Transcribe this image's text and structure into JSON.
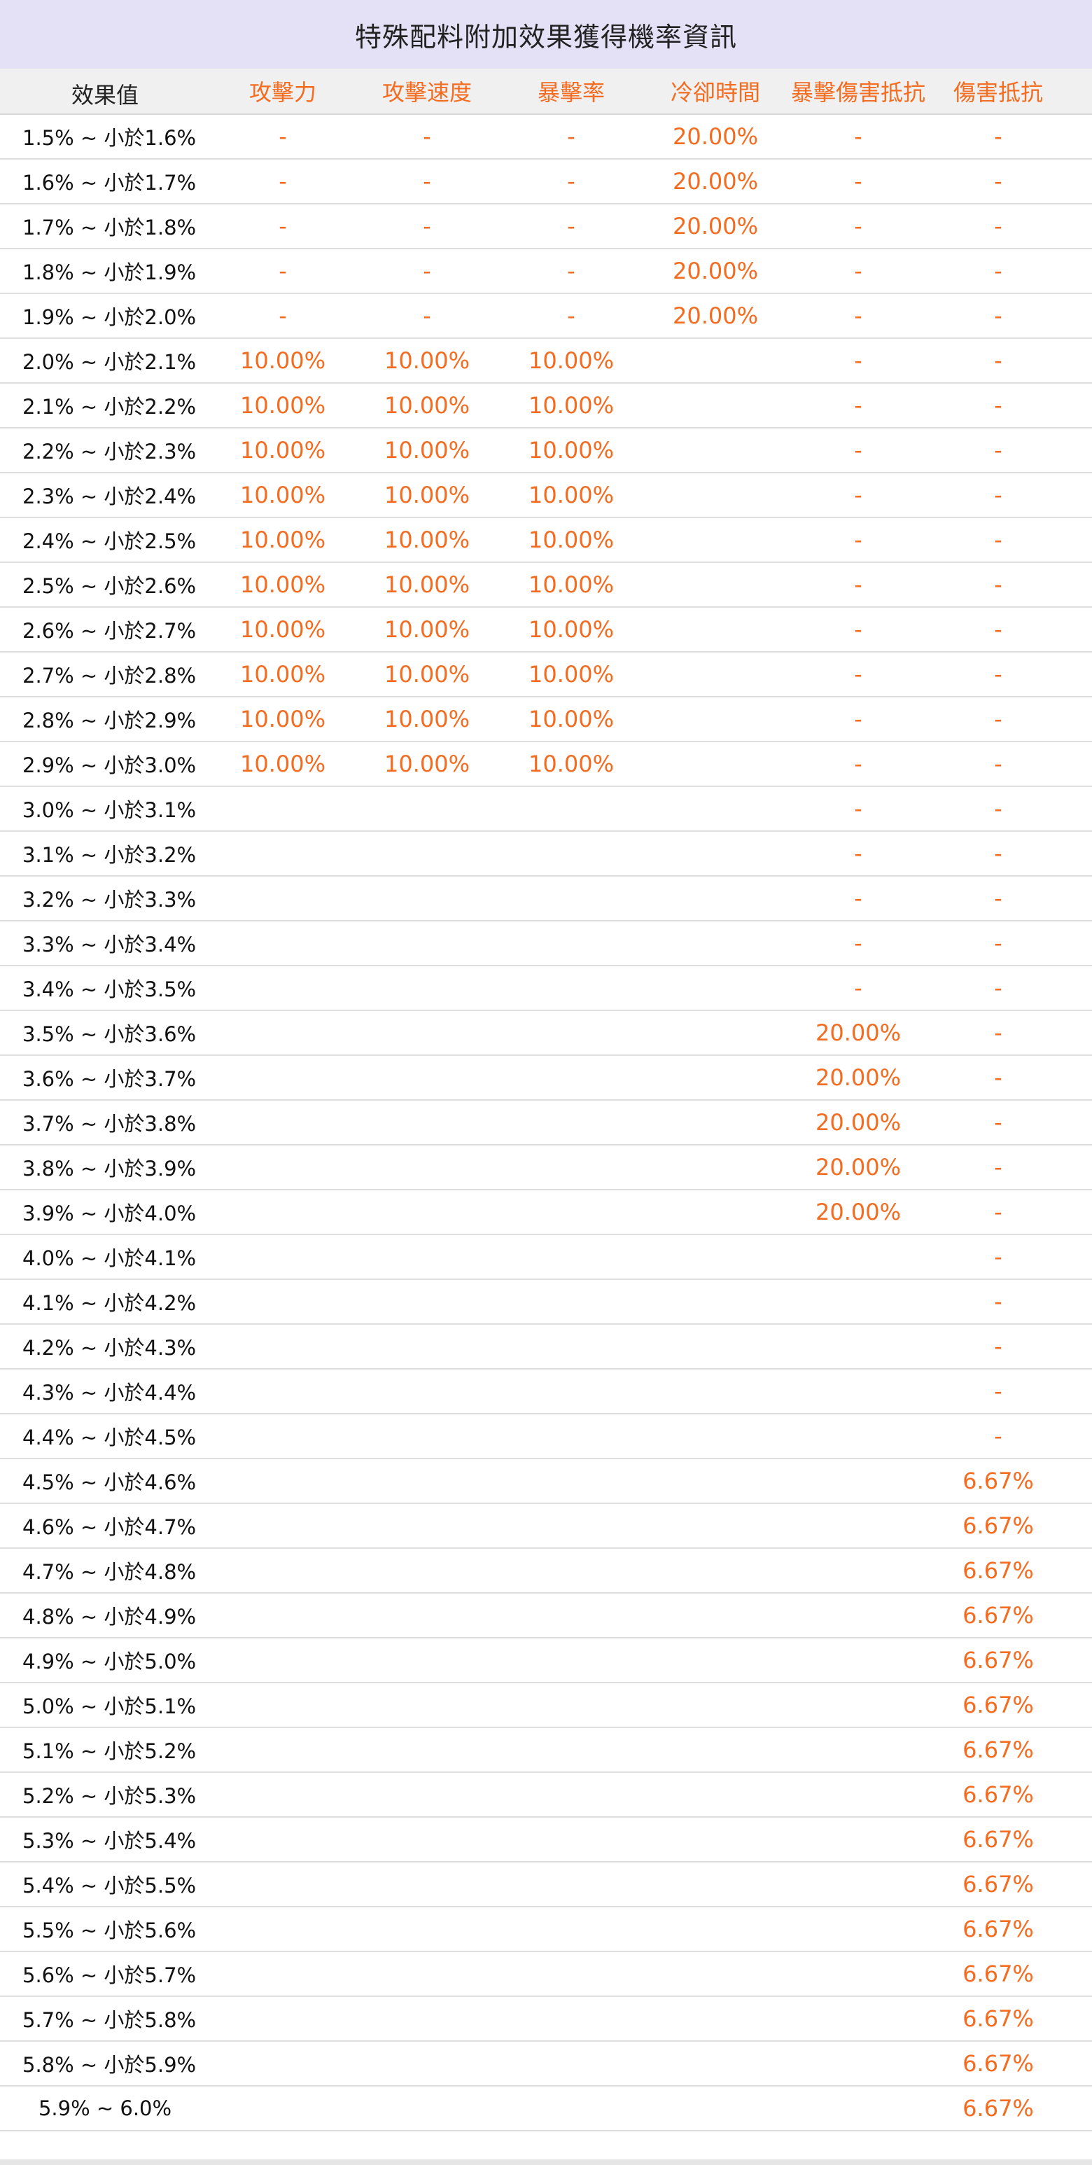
{
  "title": "特殊配料附加效果獲得機率資訊",
  "columns": [
    "效果值",
    "攻擊力",
    "攻擊速度",
    "暴擊率",
    "冷卻時間",
    "暴擊傷害抵抗",
    "傷害抵抗"
  ],
  "accent_color": "#f36c20",
  "header_bg": "#e4e0f6",
  "rows": [
    {
      "label": "1.5% ~ 小於1.6%",
      "values": [
        "-",
        "-",
        "-",
        "20.00%",
        "-",
        "-"
      ]
    },
    {
      "label": "1.6% ~ 小於1.7%",
      "values": [
        "-",
        "-",
        "-",
        "20.00%",
        "-",
        "-"
      ]
    },
    {
      "label": "1.7% ~ 小於1.8%",
      "values": [
        "-",
        "-",
        "-",
        "20.00%",
        "-",
        "-"
      ]
    },
    {
      "label": "1.8% ~ 小於1.9%",
      "values": [
        "-",
        "-",
        "-",
        "20.00%",
        "-",
        "-"
      ]
    },
    {
      "label": "1.9% ~ 小於2.0%",
      "values": [
        "-",
        "-",
        "-",
        "20.00%",
        "-",
        "-"
      ]
    },
    {
      "label": "2.0% ~ 小於2.1%",
      "values": [
        "10.00%",
        "10.00%",
        "10.00%",
        "",
        "-",
        "-"
      ]
    },
    {
      "label": "2.1% ~ 小於2.2%",
      "values": [
        "10.00%",
        "10.00%",
        "10.00%",
        "",
        "-",
        "-"
      ]
    },
    {
      "label": "2.2% ~ 小於2.3%",
      "values": [
        "10.00%",
        "10.00%",
        "10.00%",
        "",
        "-",
        "-"
      ]
    },
    {
      "label": "2.3% ~ 小於2.4%",
      "values": [
        "10.00%",
        "10.00%",
        "10.00%",
        "",
        "-",
        "-"
      ]
    },
    {
      "label": "2.4% ~ 小於2.5%",
      "values": [
        "10.00%",
        "10.00%",
        "10.00%",
        "",
        "-",
        "-"
      ]
    },
    {
      "label": "2.5% ~ 小於2.6%",
      "values": [
        "10.00%",
        "10.00%",
        "10.00%",
        "",
        "-",
        "-"
      ]
    },
    {
      "label": "2.6% ~ 小於2.7%",
      "values": [
        "10.00%",
        "10.00%",
        "10.00%",
        "",
        "-",
        "-"
      ]
    },
    {
      "label": "2.7% ~ 小於2.8%",
      "values": [
        "10.00%",
        "10.00%",
        "10.00%",
        "",
        "-",
        "-"
      ]
    },
    {
      "label": "2.8% ~ 小於2.9%",
      "values": [
        "10.00%",
        "10.00%",
        "10.00%",
        "",
        "-",
        "-"
      ]
    },
    {
      "label": "2.9% ~ 小於3.0%",
      "values": [
        "10.00%",
        "10.00%",
        "10.00%",
        "",
        "-",
        "-"
      ]
    },
    {
      "label": "3.0% ~ 小於3.1%",
      "values": [
        "",
        "",
        "",
        "",
        "-",
        "-"
      ]
    },
    {
      "label": "3.1% ~ 小於3.2%",
      "values": [
        "",
        "",
        "",
        "",
        "-",
        "-"
      ]
    },
    {
      "label": "3.2% ~ 小於3.3%",
      "values": [
        "",
        "",
        "",
        "",
        "-",
        "-"
      ]
    },
    {
      "label": "3.3% ~ 小於3.4%",
      "values": [
        "",
        "",
        "",
        "",
        "-",
        "-"
      ]
    },
    {
      "label": "3.4% ~ 小於3.5%",
      "values": [
        "",
        "",
        "",
        "",
        "-",
        "-"
      ]
    },
    {
      "label": "3.5% ~ 小於3.6%",
      "values": [
        "",
        "",
        "",
        "",
        "20.00%",
        "-"
      ]
    },
    {
      "label": "3.6% ~ 小於3.7%",
      "values": [
        "",
        "",
        "",
        "",
        "20.00%",
        "-"
      ]
    },
    {
      "label": "3.7% ~ 小於3.8%",
      "values": [
        "",
        "",
        "",
        "",
        "20.00%",
        "-"
      ]
    },
    {
      "label": "3.8% ~ 小於3.9%",
      "values": [
        "",
        "",
        "",
        "",
        "20.00%",
        "-"
      ]
    },
    {
      "label": "3.9% ~ 小於4.0%",
      "values": [
        "",
        "",
        "",
        "",
        "20.00%",
        "-"
      ]
    },
    {
      "label": "4.0% ~ 小於4.1%",
      "values": [
        "",
        "",
        "",
        "",
        "",
        "-"
      ]
    },
    {
      "label": "4.1% ~ 小於4.2%",
      "values": [
        "",
        "",
        "",
        "",
        "",
        "-"
      ]
    },
    {
      "label": "4.2% ~ 小於4.3%",
      "values": [
        "",
        "",
        "",
        "",
        "",
        "-"
      ]
    },
    {
      "label": "4.3% ~ 小於4.4%",
      "values": [
        "",
        "",
        "",
        "",
        "",
        "-"
      ]
    },
    {
      "label": "4.4% ~ 小於4.5%",
      "values": [
        "",
        "",
        "",
        "",
        "",
        "-"
      ]
    },
    {
      "label": "4.5% ~ 小於4.6%",
      "values": [
        "",
        "",
        "",
        "",
        "",
        "6.67%"
      ]
    },
    {
      "label": "4.6% ~ 小於4.7%",
      "values": [
        "",
        "",
        "",
        "",
        "",
        "6.67%"
      ]
    },
    {
      "label": "4.7% ~ 小於4.8%",
      "values": [
        "",
        "",
        "",
        "",
        "",
        "6.67%"
      ]
    },
    {
      "label": "4.8% ~ 小於4.9%",
      "values": [
        "",
        "",
        "",
        "",
        "",
        "6.67%"
      ]
    },
    {
      "label": "4.9% ~ 小於5.0%",
      "values": [
        "",
        "",
        "",
        "",
        "",
        "6.67%"
      ]
    },
    {
      "label": "5.0% ~ 小於5.1%",
      "values": [
        "",
        "",
        "",
        "",
        "",
        "6.67%"
      ]
    },
    {
      "label": "5.1% ~ 小於5.2%",
      "values": [
        "",
        "",
        "",
        "",
        "",
        "6.67%"
      ]
    },
    {
      "label": "5.2% ~ 小於5.3%",
      "values": [
        "",
        "",
        "",
        "",
        "",
        "6.67%"
      ]
    },
    {
      "label": "5.3% ~ 小於5.4%",
      "values": [
        "",
        "",
        "",
        "",
        "",
        "6.67%"
      ]
    },
    {
      "label": "5.4% ~ 小於5.5%",
      "values": [
        "",
        "",
        "",
        "",
        "",
        "6.67%"
      ]
    },
    {
      "label": "5.5% ~ 小於5.6%",
      "values": [
        "",
        "",
        "",
        "",
        "",
        "6.67%"
      ]
    },
    {
      "label": "5.6% ~ 小於5.7%",
      "values": [
        "",
        "",
        "",
        "",
        "",
        "6.67%"
      ]
    },
    {
      "label": "5.7% ~ 小於5.8%",
      "values": [
        "",
        "",
        "",
        "",
        "",
        "6.67%"
      ]
    },
    {
      "label": "5.8% ~ 小於5.9%",
      "values": [
        "",
        "",
        "",
        "",
        "",
        "6.67%"
      ]
    },
    {
      "label": "5.9% ~ 6.0%",
      "values": [
        "",
        "",
        "",
        "",
        "",
        "6.67%"
      ],
      "centered": true
    }
  ]
}
